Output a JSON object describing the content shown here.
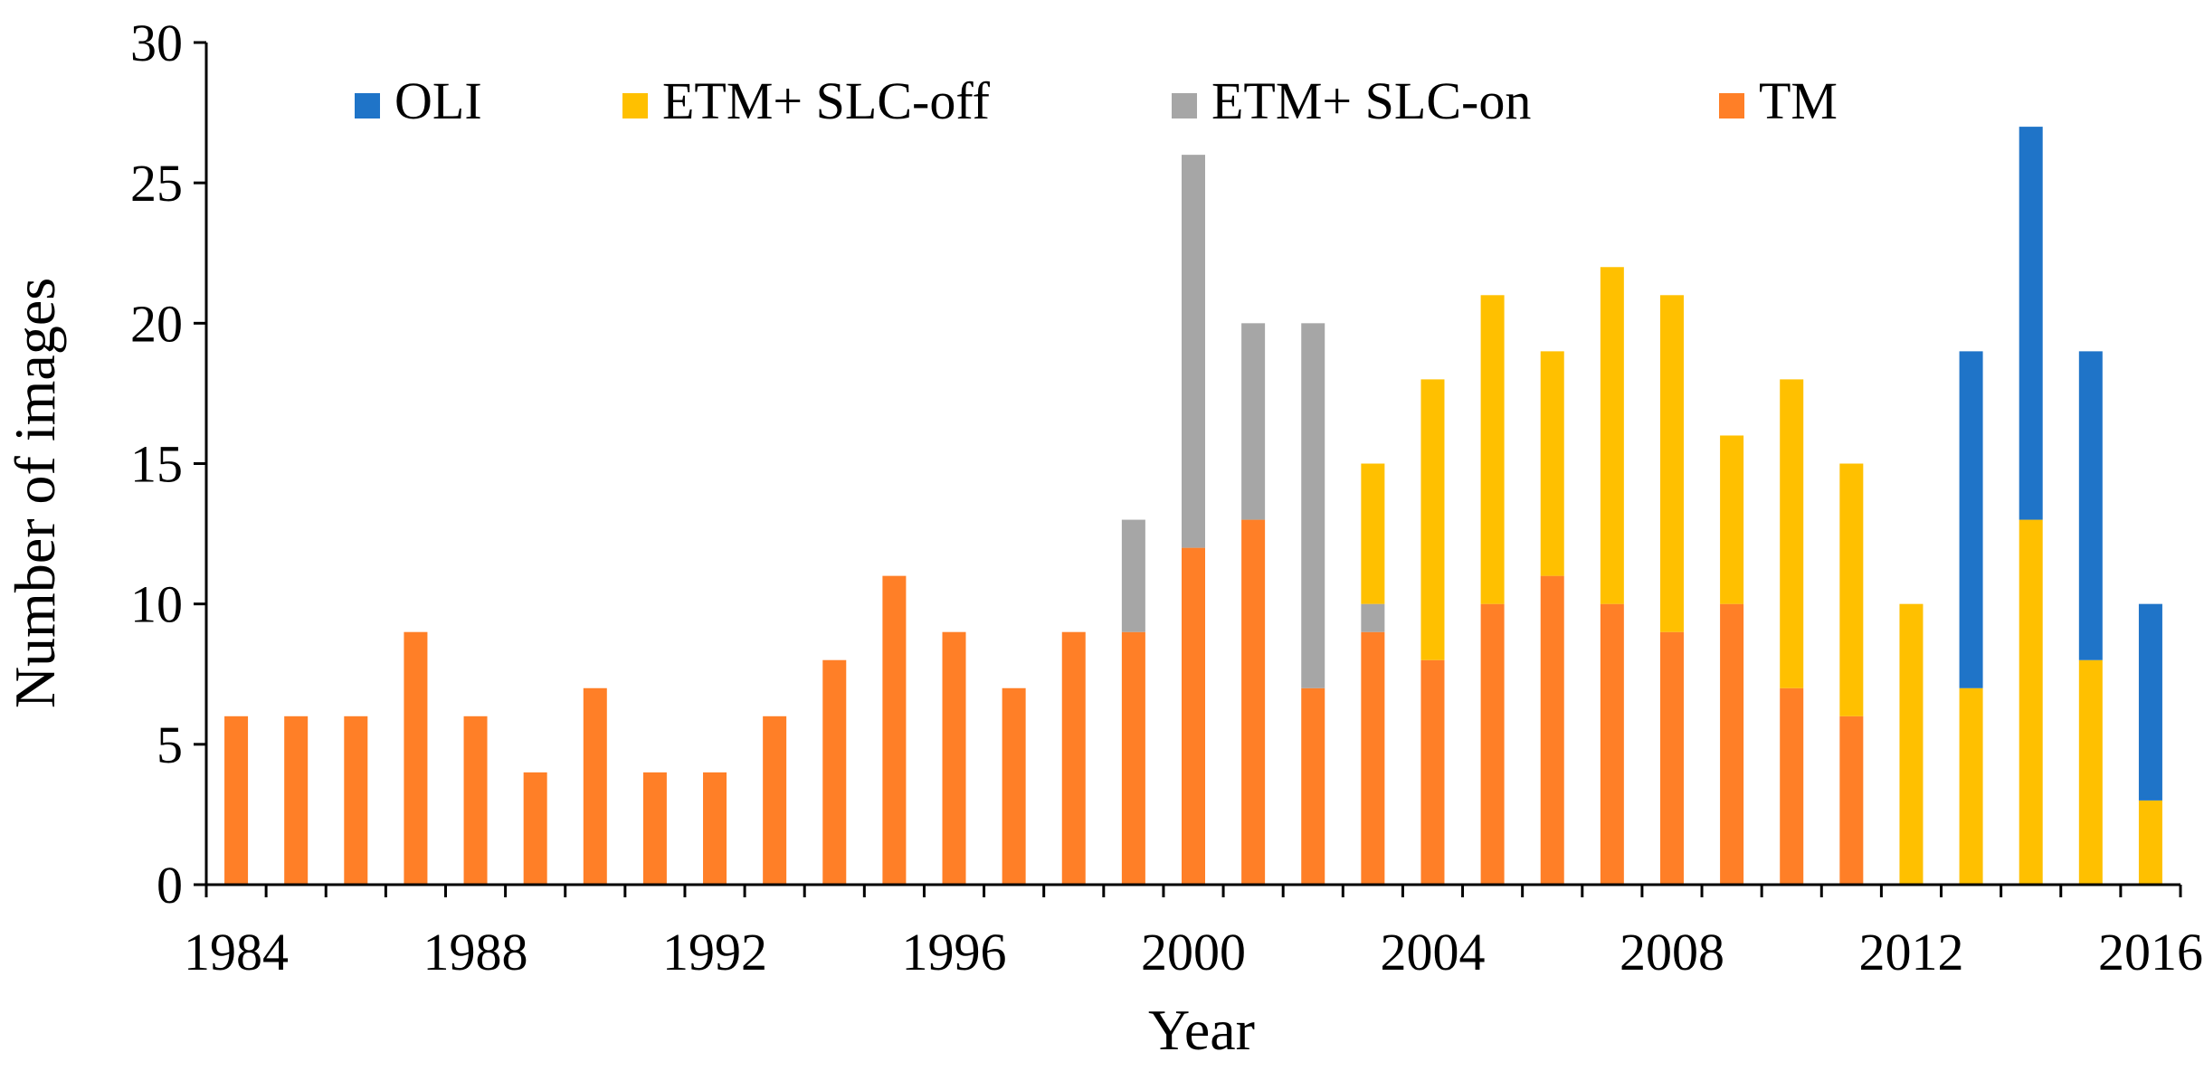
{
  "chart_data": {
    "type": "bar",
    "stacked": true,
    "title": "",
    "xlabel": "Year",
    "ylabel": "Number of images",
    "ylim": [
      0,
      30
    ],
    "yticks": [
      0,
      5,
      10,
      15,
      20,
      25,
      30
    ],
    "xtick_labels": [
      "1984",
      "1988",
      "1992",
      "1996",
      "2000",
      "2004",
      "2008",
      "2012",
      "2016"
    ],
    "categories": [
      "1984",
      "1985",
      "1986",
      "1987",
      "1988",
      "1989",
      "1990",
      "1991",
      "1992",
      "1993",
      "1994",
      "1995",
      "1996",
      "1997",
      "1998",
      "1999",
      "2000",
      "2001",
      "2002",
      "2003",
      "2004",
      "2005",
      "2006",
      "2007",
      "2008",
      "2009",
      "2010",
      "2011",
      "2012",
      "2013",
      "2014",
      "2015",
      "2016"
    ],
    "legend_position": "top",
    "series": [
      {
        "name": "TM",
        "color": "#FF7F27",
        "values": [
          6,
          6,
          6,
          9,
          6,
          4,
          7,
          4,
          4,
          6,
          8,
          11,
          9,
          7,
          9,
          9,
          12,
          13,
          7,
          9,
          8,
          10,
          11,
          10,
          9,
          10,
          7,
          6,
          0,
          0,
          0,
          0,
          0
        ]
      },
      {
        "name": "ETM+ SLC-on",
        "color": "#A6A6A6",
        "values": [
          0,
          0,
          0,
          0,
          0,
          0,
          0,
          0,
          0,
          0,
          0,
          0,
          0,
          0,
          0,
          4,
          14,
          7,
          13,
          1,
          0,
          0,
          0,
          0,
          0,
          0,
          0,
          0,
          0,
          0,
          0,
          0,
          0
        ]
      },
      {
        "name": "ETM+ SLC-off",
        "color": "#FFC000",
        "values": [
          0,
          0,
          0,
          0,
          0,
          0,
          0,
          0,
          0,
          0,
          0,
          0,
          0,
          0,
          0,
          0,
          0,
          0,
          0,
          5,
          10,
          11,
          8,
          12,
          12,
          6,
          11,
          9,
          10,
          7,
          13,
          8,
          3
        ]
      },
      {
        "name": "OLI",
        "color": "#1F74C8",
        "values": [
          0,
          0,
          0,
          0,
          0,
          0,
          0,
          0,
          0,
          0,
          0,
          0,
          0,
          0,
          0,
          0,
          0,
          0,
          0,
          0,
          0,
          0,
          0,
          0,
          0,
          0,
          0,
          0,
          0,
          12,
          14,
          11,
          7
        ]
      }
    ],
    "legend_order": [
      "OLI",
      "ETM+ SLC-off",
      "ETM+ SLC-on",
      "TM"
    ]
  }
}
